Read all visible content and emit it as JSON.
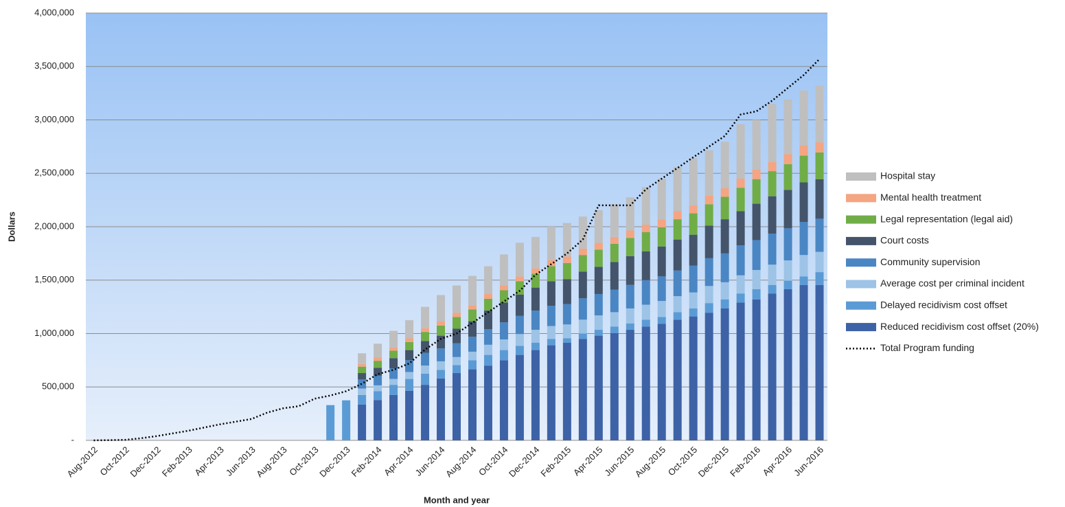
{
  "chart_data": {
    "type": "bar",
    "stacked": true,
    "y_label": "Dollars",
    "x_label": "Month and year",
    "categories": [
      "Aug-2012",
      null,
      "Oct-2012",
      null,
      "Dec-2012",
      null,
      "Feb-2013",
      null,
      "Apr-2013",
      null,
      "Jun-2013",
      null,
      "Aug-2013",
      null,
      "Oct-2013",
      null,
      "Dec-2013",
      null,
      "Feb-2014",
      null,
      "Apr-2014",
      null,
      "Jun-2014",
      null,
      "Aug-2014",
      null,
      "Oct-2014",
      null,
      "Dec-2014",
      null,
      "Feb-2015",
      null,
      "Apr-2015",
      null,
      "Jun-2015",
      null,
      "Aug-2015",
      null,
      "Oct-2015",
      null,
      "Dec-2015",
      null,
      "Feb-2016",
      null,
      "Apr-2016",
      null,
      "Jun-2016"
    ],
    "ylim": [
      0,
      4000000
    ],
    "yticks": [
      {
        "value": 0,
        "label": "-"
      },
      {
        "value": 500000,
        "label": "500,000"
      },
      {
        "value": 1000000,
        "label": "1,000,000"
      },
      {
        "value": 1500000,
        "label": "1,500,000"
      },
      {
        "value": 2000000,
        "label": "2,000,000"
      },
      {
        "value": 2500000,
        "label": "2,500,000"
      },
      {
        "value": 3000000,
        "label": "3,000,000"
      },
      {
        "value": 3500000,
        "label": "3,500,000"
      },
      {
        "value": 4000000,
        "label": "4,000,000"
      }
    ],
    "grid": true,
    "series": [
      {
        "name": "Reduced recidivism cost offset (20%)",
        "color": "#3d62a6",
        "values": [
          null,
          null,
          null,
          null,
          null,
          null,
          null,
          null,
          null,
          null,
          null,
          null,
          null,
          null,
          null,
          null,
          null,
          335000,
          378000,
          425000,
          465000,
          520000,
          580000,
          630000,
          665000,
          700000,
          750000,
          800000,
          845000,
          890000,
          915000,
          950000,
          980000,
          1005000,
          1035000,
          1065000,
          1090000,
          1130000,
          1160000,
          1195000,
          1235000,
          1290000,
          1320000,
          1375000,
          1415000,
          1455000,
          1455000
        ]
      },
      {
        "name": "Delayed recidivism cost offset",
        "color": "#5b9bd5",
        "values": [
          null,
          null,
          null,
          null,
          null,
          null,
          null,
          null,
          null,
          null,
          null,
          null,
          null,
          null,
          null,
          330000,
          375000,
          90000,
          82000,
          95000,
          110000,
          105000,
          80000,
          75000,
          85000,
          100000,
          95000,
          85000,
          70000,
          60000,
          40000,
          50000,
          55000,
          60000,
          60000,
          65000,
          65000,
          70000,
          75000,
          90000,
          85000,
          85000,
          95000,
          80000,
          80000,
          80000,
          120000
        ]
      },
      {
        "name": "Average cost per criminal incident",
        "color": "#9dc3e6",
        "values": [
          null,
          null,
          null,
          null,
          null,
          null,
          null,
          null,
          null,
          null,
          null,
          null,
          null,
          null,
          null,
          null,
          null,
          60000,
          55000,
          55000,
          65000,
          75000,
          80000,
          75000,
          80000,
          95000,
          100000,
          110000,
          120000,
          120000,
          130000,
          130000,
          135000,
          135000,
          140000,
          140000,
          150000,
          150000,
          150000,
          160000,
          160000,
          170000,
          180000,
          190000,
          190000,
          200000,
          190000
        ]
      },
      {
        "name": "Community supervision",
        "color": "#4a86c3",
        "values": [
          null,
          null,
          null,
          null,
          null,
          null,
          null,
          null,
          null,
          null,
          null,
          null,
          null,
          null,
          null,
          null,
          null,
          85000,
          90000,
          100000,
          110000,
          120000,
          120000,
          130000,
          140000,
          145000,
          160000,
          170000,
          180000,
          190000,
          190000,
          200000,
          200000,
          210000,
          220000,
          230000,
          230000,
          240000,
          250000,
          260000,
          270000,
          280000,
          280000,
          290000,
          300000,
          310000,
          310000
        ]
      },
      {
        "name": "Court costs",
        "color": "#44546a",
        "values": [
          null,
          null,
          null,
          null,
          null,
          null,
          null,
          null,
          null,
          null,
          null,
          null,
          null,
          null,
          null,
          null,
          null,
          60000,
          75000,
          95000,
          95000,
          110000,
          120000,
          135000,
          145000,
          175000,
          185000,
          200000,
          215000,
          230000,
          235000,
          250000,
          255000,
          260000,
          270000,
          270000,
          280000,
          290000,
          290000,
          305000,
          320000,
          320000,
          340000,
          350000,
          360000,
          370000,
          370000
        ]
      },
      {
        "name": "Legal representation (legal aid)",
        "color": "#70ad47",
        "values": [
          null,
          null,
          null,
          null,
          null,
          null,
          null,
          null,
          null,
          null,
          null,
          null,
          null,
          null,
          null,
          null,
          null,
          60000,
          65000,
          70000,
          75000,
          85000,
          95000,
          110000,
          110000,
          110000,
          115000,
          125000,
          130000,
          140000,
          150000,
          155000,
          160000,
          170000,
          170000,
          180000,
          180000,
          190000,
          200000,
          200000,
          210000,
          220000,
          230000,
          235000,
          240000,
          250000,
          250000
        ]
      },
      {
        "name": "Mental health treatment",
        "color": "#f4a582",
        "values": [
          null,
          null,
          null,
          null,
          null,
          null,
          null,
          null,
          null,
          null,
          null,
          null,
          null,
          null,
          null,
          null,
          null,
          25000,
          30000,
          30000,
          35000,
          35000,
          40000,
          40000,
          40000,
          45000,
          45000,
          45000,
          50000,
          55000,
          60000,
          60000,
          65000,
          65000,
          70000,
          70000,
          70000,
          75000,
          75000,
          80000,
          80000,
          85000,
          90000,
          85000,
          95000,
          95000,
          95000
        ]
      },
      {
        "name": "Hospital stay",
        "color": "#bfbfbf",
        "values": [
          null,
          null,
          null,
          null,
          null,
          null,
          null,
          null,
          null,
          null,
          null,
          null,
          null,
          null,
          null,
          null,
          null,
          100000,
          130000,
          155000,
          170000,
          200000,
          245000,
          255000,
          275000,
          260000,
          290000,
          315000,
          295000,
          315000,
          315000,
          300000,
          305000,
          305000,
          310000,
          350000,
          385000,
          415000,
          440000,
          425000,
          435000,
          510000,
          465000,
          545000,
          510000,
          515000,
          530000
        ]
      },
      {
        "name": "Total Program funding",
        "color": "#000000",
        "type": "line",
        "values": [
          0,
          2000,
          5000,
          20000,
          40000,
          65000,
          90000,
          120000,
          150000,
          175000,
          200000,
          260000,
          300000,
          320000,
          390000,
          420000,
          460000,
          530000,
          620000,
          660000,
          720000,
          850000,
          950000,
          1000000,
          1100000,
          1200000,
          1300000,
          1400000,
          1550000,
          1650000,
          1750000,
          1880000,
          2200000,
          2200000,
          2200000,
          2350000,
          2450000,
          2550000,
          2650000,
          2750000,
          2850000,
          3050000,
          3080000,
          3180000,
          3300000,
          3420000,
          3570000
        ]
      }
    ]
  }
}
